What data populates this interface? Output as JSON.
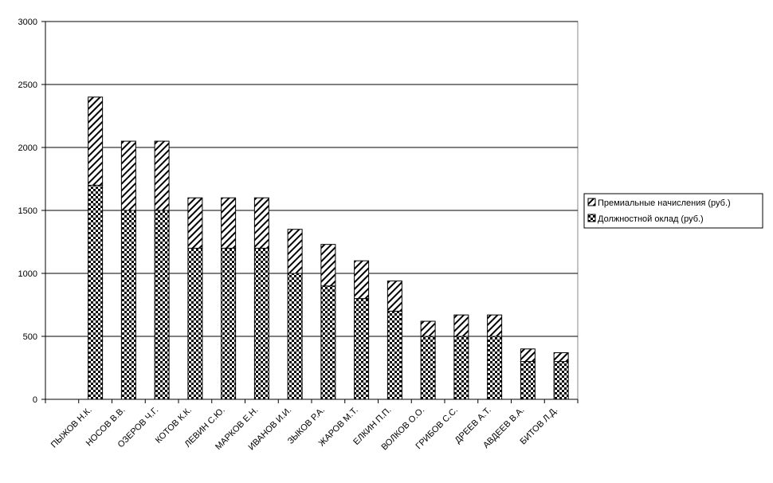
{
  "chart_data": {
    "type": "stacked_bar",
    "categories": [
      null,
      "ПЫЖОВ Н.К.",
      "НОСОВ В.В.",
      "ОЗЕРОВ Ч.Г.",
      "КОТОВ К.К.",
      "ЛЕВИН С.Ю.",
      "МАРКОВ Е.Н.",
      "ИВАНОВ И.И.",
      "ЗЫКОВ Р.А.",
      "ЖАРОВ М.Т.",
      "ЕЛКИН П.П.",
      "ВОЛКОВ О.О.",
      "ГРИБОВ С.С.",
      "ДРЕЕВ А.Т.",
      "АВДЕЕВ В.А.",
      "БИТОВ Л.Д."
    ],
    "series": [
      {
        "name": "Должностной оклад (руб.)",
        "color": "#000000",
        "pattern": "checker",
        "values": [
          null,
          1700,
          1500,
          1500,
          1200,
          1200,
          1200,
          1000,
          900,
          800,
          700,
          500,
          500,
          500,
          300,
          300
        ]
      },
      {
        "name": "Премиальные начисления (руб.)",
        "color": "#000000",
        "pattern": "hatch",
        "values": [
          null,
          700,
          550,
          550,
          400,
          400,
          400,
          350,
          330,
          300,
          240,
          120,
          170,
          170,
          100,
          70
        ]
      }
    ],
    "ylim": [
      0,
      3000
    ],
    "yticks": [
      0,
      500,
      1000,
      1500,
      2000,
      2500,
      3000
    ],
    "grid": true,
    "legend": "right"
  }
}
